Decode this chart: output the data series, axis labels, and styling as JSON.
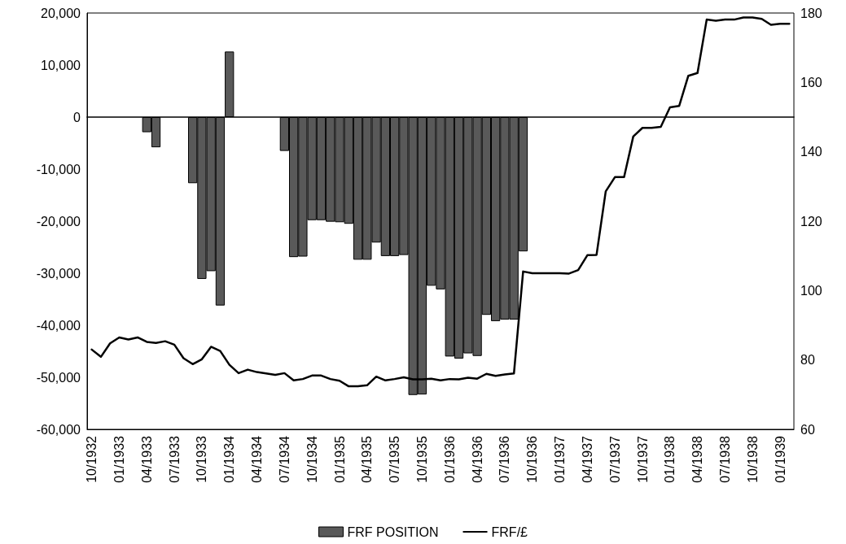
{
  "chart_data": {
    "type": "bar",
    "categories": [
      "10/1932",
      null,
      null,
      "01/1933",
      null,
      null,
      "04/1933",
      null,
      null,
      "07/1933",
      null,
      null,
      "10/1933",
      null,
      null,
      "01/1934",
      null,
      null,
      "04/1934",
      null,
      null,
      "07/1934",
      null,
      null,
      "10/1934",
      null,
      null,
      "01/1935",
      null,
      null,
      "04/1935",
      null,
      null,
      "07/1935",
      null,
      null,
      "10/1935",
      null,
      null,
      "01/1936",
      null,
      null,
      "04/1936",
      null,
      null,
      "07/1936",
      null,
      null,
      "10/1936",
      null,
      null,
      "01/1937",
      null,
      null,
      "04/1937",
      null,
      null,
      "07/1937",
      null,
      null,
      "10/1937",
      null,
      null,
      "01/1938",
      null,
      null,
      "04/1938",
      null,
      null,
      "07/1938",
      null,
      null,
      "10/1938",
      null,
      null,
      "01/1939",
      null
    ],
    "series": [
      {
        "name": "FRF POSITION",
        "color": "#595959",
        "values": [
          null,
          null,
          null,
          null,
          null,
          null,
          -2900,
          -5800,
          null,
          null,
          null,
          -12700,
          -31100,
          -29600,
          -36200,
          12600,
          null,
          null,
          null,
          null,
          null,
          -6500,
          -26900,
          -26800,
          -19800,
          -19800,
          -20100,
          -20200,
          -20500,
          -27400,
          -27400,
          -24100,
          -26700,
          -26700,
          -26500,
          -53400,
          -53300,
          -32400,
          -33100,
          -46000,
          -46400,
          -45400,
          -45900,
          -38000,
          -39200,
          -38900,
          -38900,
          -25800,
          null,
          null,
          null,
          null,
          null,
          null,
          null,
          null,
          null,
          null,
          null,
          null,
          null,
          null,
          null,
          null,
          null,
          null,
          null,
          null,
          null,
          null,
          null,
          null,
          null,
          null,
          null,
          null,
          null
        ]
      },
      {
        "name": "FRF/£",
        "type": "line",
        "axis": "y2",
        "color": "#000000",
        "values": [
          83.0,
          80.9,
          84.8,
          86.5,
          85.9,
          86.5,
          85.2,
          84.9,
          85.4,
          84.4,
          80.5,
          78.8,
          80.2,
          83.8,
          82.6,
          78.6,
          76.2,
          77.2,
          76.5,
          76.1,
          75.7,
          76.2,
          74.1,
          74.5,
          75.5,
          75.5,
          74.5,
          74.0,
          72.4,
          72.4,
          72.7,
          75.2,
          74.1,
          74.5,
          75.0,
          74.4,
          74.4,
          74.6,
          74.1,
          74.5,
          74.4,
          74.9,
          74.6,
          76.0,
          75.4,
          75.8,
          76.1,
          105.5,
          105.0,
          105.0,
          105.0,
          105.0,
          104.9,
          105.9,
          110.2,
          110.3,
          128.6,
          132.7,
          132.7,
          144.4,
          146.9,
          146.9,
          147.2,
          152.8,
          153.2,
          161.9,
          162.7,
          178.1,
          177.8,
          178.1,
          178.1,
          178.7,
          178.7,
          178.3,
          176.6,
          176.9,
          176.9
        ]
      }
    ],
    "ylim": [
      -60000,
      20000
    ],
    "yticks": [
      {
        "value": -60000,
        "label": "-60,000"
      },
      {
        "value": -50000,
        "label": "-50,000"
      },
      {
        "value": -40000,
        "label": "-40,000"
      },
      {
        "value": -30000,
        "label": "-30,000"
      },
      {
        "value": -20000,
        "label": "-20,000"
      },
      {
        "value": -10000,
        "label": "-10,000"
      },
      0,
      {
        "value": 10000,
        "label": "10,000"
      },
      {
        "value": 20000,
        "label": "20,000"
      }
    ],
    "y2lim": [
      60,
      180
    ],
    "y2ticks": [
      60,
      80,
      100,
      120,
      140,
      160,
      180
    ],
    "legend": "bottom",
    "marker": "none",
    "line_style": "solid"
  }
}
